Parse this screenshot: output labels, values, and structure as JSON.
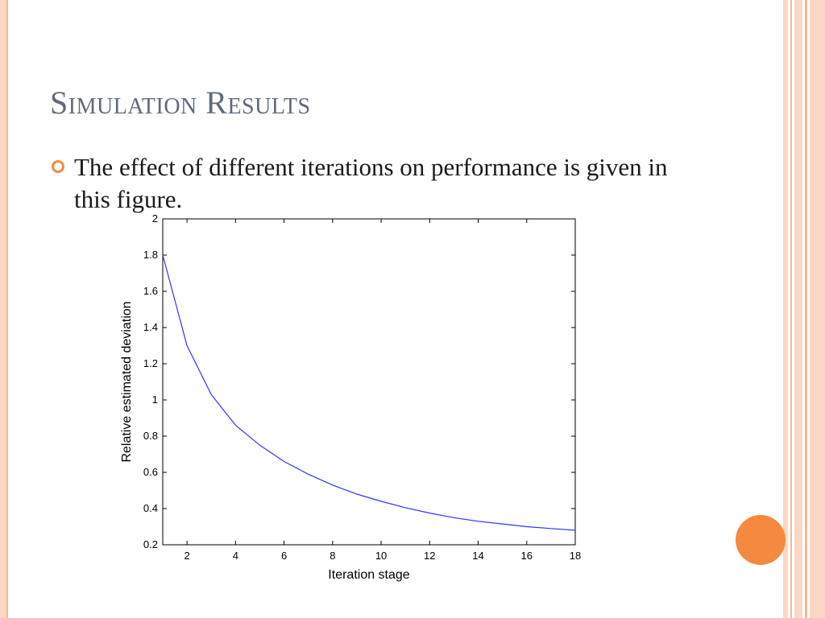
{
  "slide": {
    "title": "Simulation Results",
    "bullets": [
      "The effect of different iterations on performance is given in this figure."
    ]
  },
  "theme": {
    "accent": "#f5893f",
    "title_color": "#5e6b7d",
    "border_light": "#fbd7c5",
    "border_mid": "#f6b79a",
    "line_color": "#3333ff"
  },
  "chart_data": {
    "type": "line",
    "title": "",
    "xlabel": "Iteration stage",
    "ylabel": "Relative estimated deviation",
    "xlim": [
      1,
      18
    ],
    "ylim": [
      0.2,
      2
    ],
    "xticks": [
      2,
      4,
      6,
      8,
      10,
      12,
      14,
      16,
      18
    ],
    "yticks": [
      0.2,
      0.4,
      0.6,
      0.8,
      1,
      1.2,
      1.4,
      1.6,
      1.8,
      2
    ],
    "ytick_labels": [
      "0.2",
      "0.4",
      "0.6",
      "0.8",
      "1",
      "1.2",
      "1.4",
      "1.6",
      "1.8",
      "2"
    ],
    "grid": false,
    "series": [
      {
        "x": [
          1,
          2,
          3,
          4,
          5,
          6,
          7,
          8,
          9,
          10,
          11,
          12,
          13,
          14,
          15,
          16,
          17,
          18
        ],
        "y": [
          1.8,
          1.3,
          1.03,
          0.86,
          0.75,
          0.66,
          0.59,
          0.53,
          0.48,
          0.44,
          0.405,
          0.375,
          0.35,
          0.33,
          0.315,
          0.3,
          0.29,
          0.28
        ]
      }
    ]
  }
}
